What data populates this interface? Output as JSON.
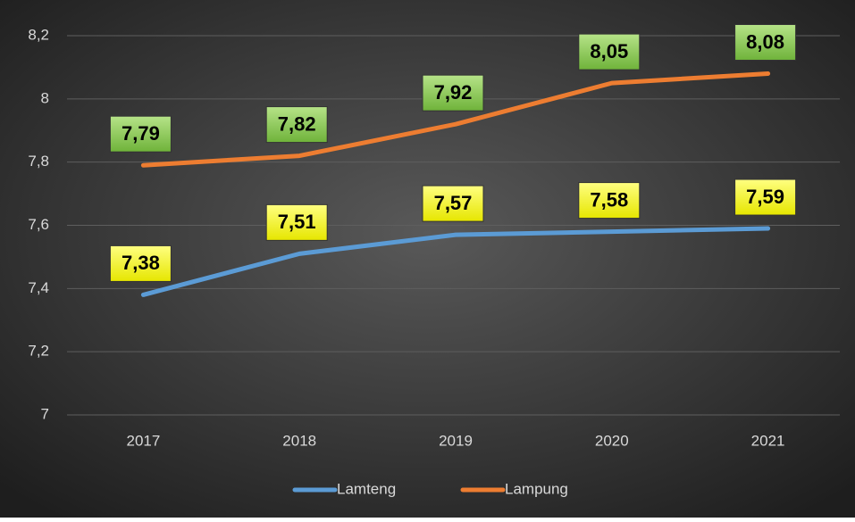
{
  "chart_data": {
    "type": "line",
    "categories": [
      "2017",
      "2018",
      "2019",
      "2020",
      "2021"
    ],
    "series": [
      {
        "name": "Lamteng",
        "color": "#5b9bd5",
        "label_color": "#ffff00",
        "values": [
          7.38,
          7.51,
          7.57,
          7.58,
          7.59
        ],
        "value_labels": [
          "7,38",
          "7,51",
          "7,57",
          "7,58",
          "7,59"
        ]
      },
      {
        "name": "Lampung",
        "color": "#ed7d31",
        "label_color": "#92d050",
        "values": [
          7.79,
          7.82,
          7.92,
          8.05,
          8.08
        ],
        "value_labels": [
          "7,79",
          "7,82",
          "7,92",
          "8,05",
          "8,08"
        ]
      }
    ],
    "ylim": [
      7,
      8.2
    ],
    "yticks": [
      7,
      {
        "value": 7.2,
        "label": "7,2"
      },
      {
        "value": 7.4,
        "label": "7,4"
      },
      {
        "value": 7.6,
        "label": "7,6"
      },
      {
        "value": 7.8,
        "label": "7,8"
      },
      8,
      {
        "value": 8.2,
        "label": "8,2"
      }
    ],
    "grid": true,
    "legend": "bottom"
  }
}
